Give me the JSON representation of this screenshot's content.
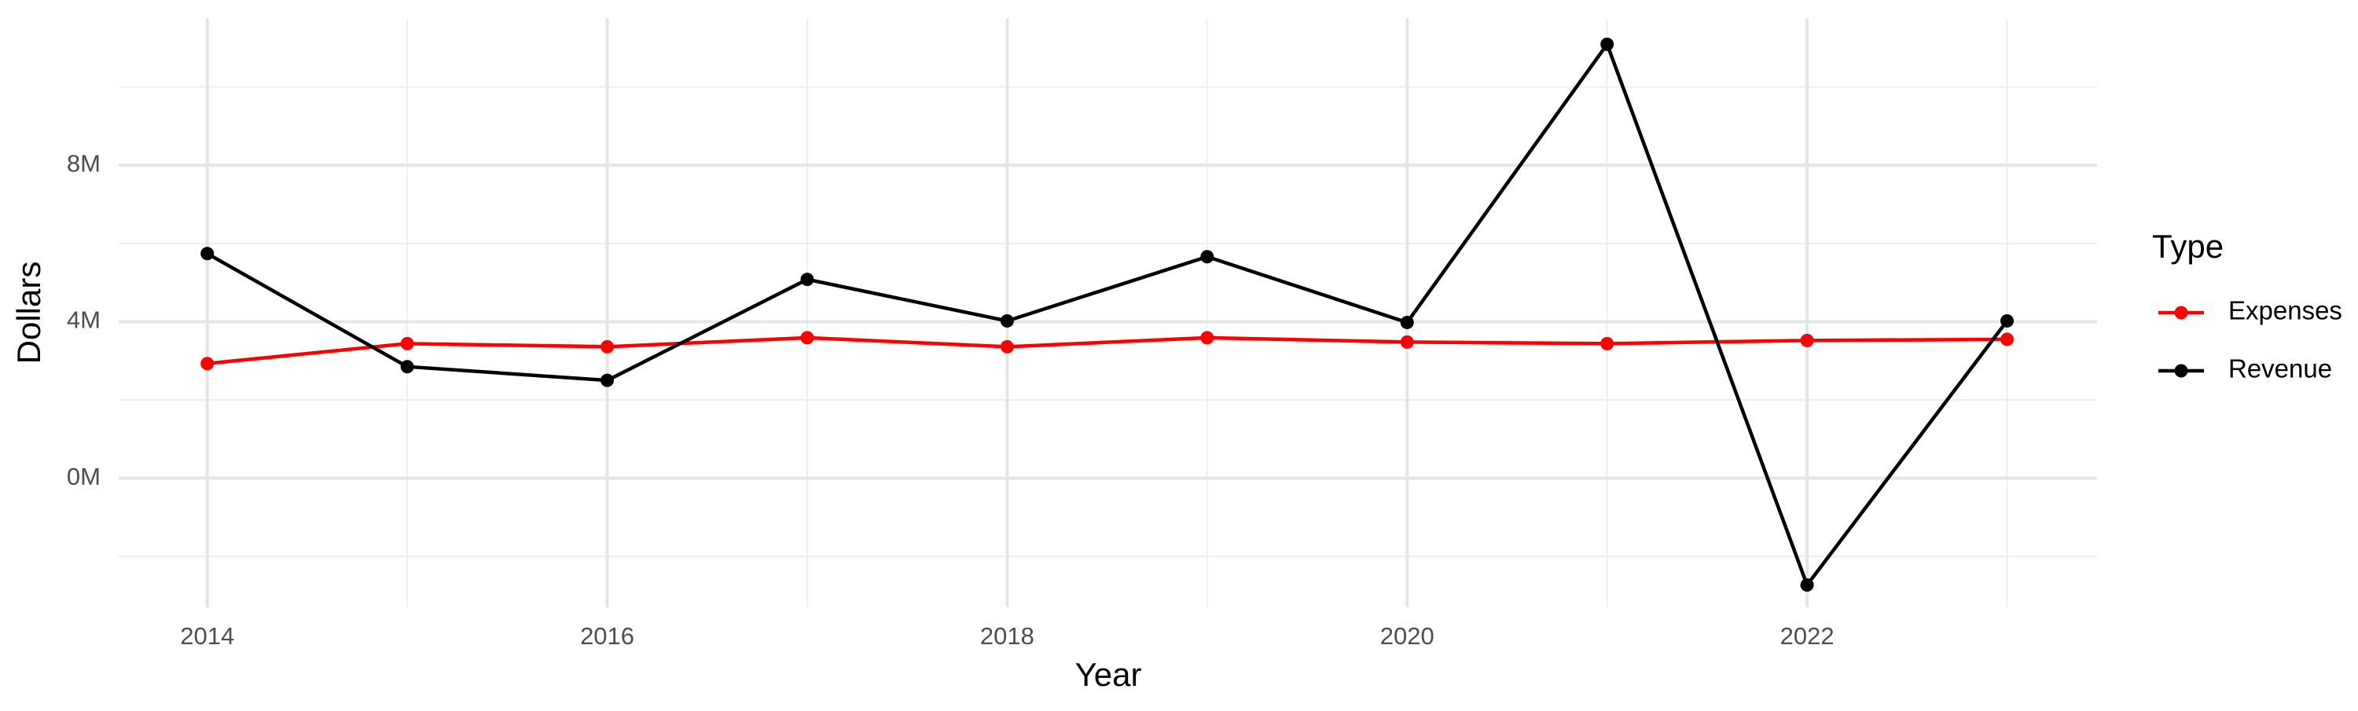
{
  "chart_data": {
    "type": "line",
    "x_label": "Year",
    "y_label": "Dollars",
    "legend_title": "Type",
    "legend_position": "right",
    "grid": true,
    "x": [
      2014,
      2015,
      2016,
      2017,
      2018,
      2019,
      2020,
      2021,
      2022,
      2023
    ],
    "series": [
      {
        "name": "Expenses",
        "color": "#ff0000",
        "values": [
          2930000,
          3440000,
          3360000,
          3590000,
          3360000,
          3590000,
          3480000,
          3440000,
          3520000,
          3550000
        ]
      },
      {
        "name": "Revenue",
        "color": "#000000",
        "values": [
          5740000,
          2850000,
          2500000,
          5080000,
          4020000,
          5660000,
          3980000,
          11090000,
          -2730000,
          4020000
        ]
      }
    ],
    "xlim": [
      2013.557,
      2023.45
    ],
    "xticks": [
      2014,
      2016,
      2018,
      2020,
      2022
    ],
    "minor_xticks": [
      2015,
      2017,
      2019,
      2021,
      2023
    ],
    "ylim": [
      -3300000,
      11760000
    ],
    "yticks": [
      {
        "value": 0,
        "label": "0M"
      },
      {
        "value": 4000000,
        "label": "4M"
      },
      {
        "value": 8000000,
        "label": "8M"
      }
    ],
    "minor_yticks": [
      -2000000,
      2000000,
      6000000,
      10000000
    ]
  }
}
